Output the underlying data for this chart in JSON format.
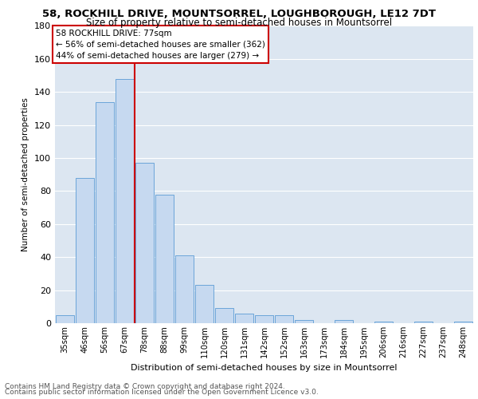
{
  "title1": "58, ROCKHILL DRIVE, MOUNTSORREL, LOUGHBOROUGH, LE12 7DT",
  "title2": "Size of property relative to semi-detached houses in Mountsorrel",
  "xlabel": "Distribution of semi-detached houses by size in Mountsorrel",
  "ylabel": "Number of semi-detached properties",
  "footnote1": "Contains HM Land Registry data © Crown copyright and database right 2024.",
  "footnote2": "Contains public sector information licensed under the Open Government Licence v3.0.",
  "annotation_line1": "58 ROCKHILL DRIVE: 77sqm",
  "annotation_line2": "← 56% of semi-detached houses are smaller (362)",
  "annotation_line3": "44% of semi-detached houses are larger (279) →",
  "bar_categories": [
    "35sqm",
    "46sqm",
    "56sqm",
    "67sqm",
    "78sqm",
    "88sqm",
    "99sqm",
    "110sqm",
    "120sqm",
    "131sqm",
    "142sqm",
    "152sqm",
    "163sqm",
    "173sqm",
    "184sqm",
    "195sqm",
    "206sqm",
    "216sqm",
    "227sqm",
    "237sqm",
    "248sqm"
  ],
  "bar_values": [
    5,
    88,
    134,
    148,
    97,
    78,
    41,
    23,
    9,
    6,
    5,
    5,
    2,
    0,
    2,
    0,
    1,
    0,
    1,
    0,
    1
  ],
  "bar_color": "#c6d9f0",
  "bar_edge_color": "#5b9bd5",
  "vline_color": "#cc0000",
  "vline_bar_index": 4,
  "grid_color": "#ffffff",
  "bg_color": "#dce6f1",
  "plot_bg_color": "#dce6f1",
  "ylim": [
    0,
    180
  ],
  "yticks": [
    0,
    20,
    40,
    60,
    80,
    100,
    120,
    140,
    160,
    180
  ],
  "title1_fontsize": 9.5,
  "title2_fontsize": 8.5,
  "ylabel_fontsize": 7.5,
  "xlabel_fontsize": 8.0,
  "footnote_fontsize": 6.5,
  "tick_fontsize": 8.0,
  "xtick_fontsize": 7.2,
  "annot_fontsize": 7.5
}
